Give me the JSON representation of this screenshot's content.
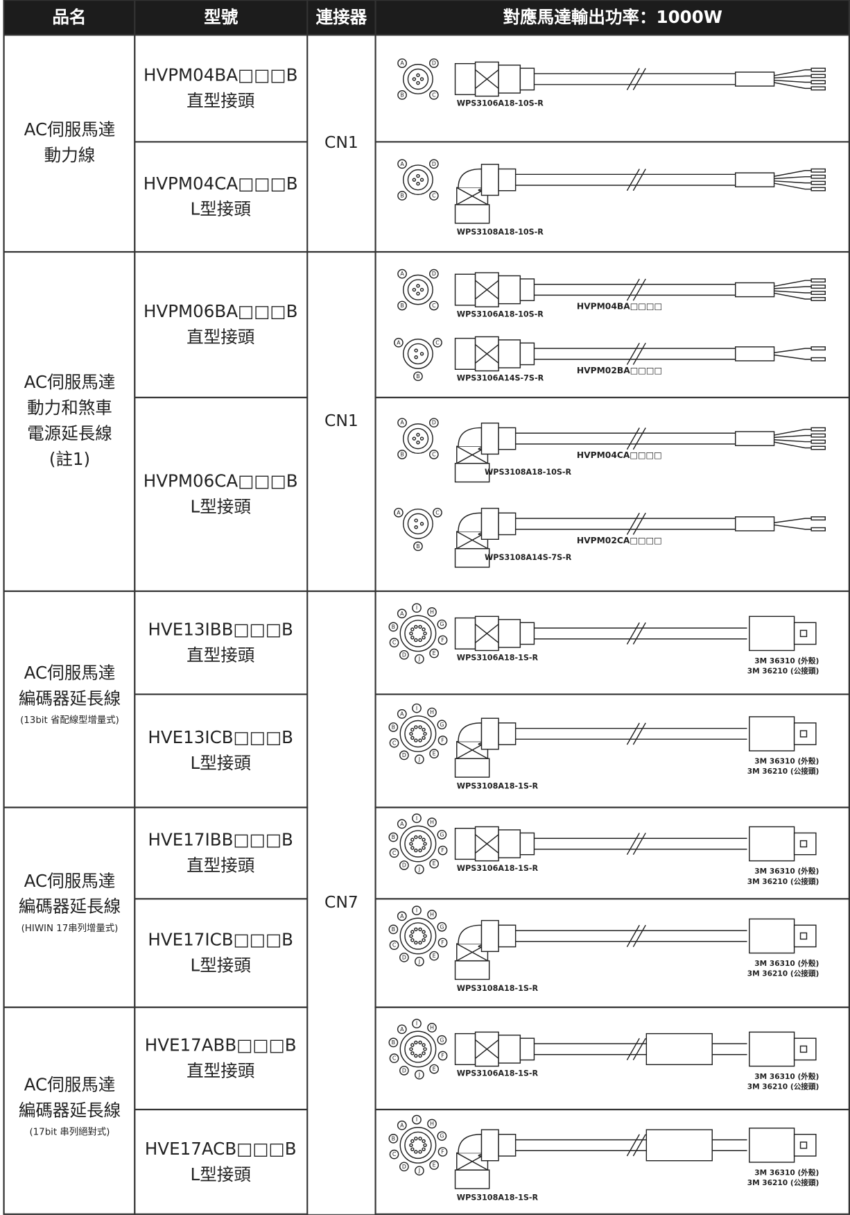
{
  "header": [
    "品名",
    "型號",
    "連接器",
    "對應馬達輸出功率：1000W"
  ],
  "connectors": [
    "CN1",
    "CN1",
    "CN7"
  ],
  "groups": [
    {
      "name": [
        "AC伺服馬達",
        "動力線"
      ],
      "rows": [
        {
          "model": "HVPM04BA□□□B",
          "type": "直型接頭",
          "cables": [
            {
              "part": "WPS3106A18-10S-R",
              "pins": [
                "A",
                "D",
                "C",
                "B"
              ]
            }
          ]
        },
        {
          "model": "HVPM04CA□□□B",
          "type": "L型接頭",
          "cables": [
            {
              "part": "WPS3108A18-10S-R",
              "pins": [
                "A",
                "D",
                "C",
                "B"
              ]
            }
          ]
        }
      ]
    },
    {
      "name": [
        "AC伺服馬達",
        "動力和煞車",
        "電源延長線",
        "(註1)"
      ],
      "rows": [
        {
          "model": "HVPM06BA□□□B",
          "type": "直型接頭",
          "cables": [
            {
              "part": "WPS3106A18-10S-R",
              "pins": [
                "A",
                "D",
                "C",
                "B"
              ],
              "label": "HVPM04BA□□□□"
            },
            {
              "part": "WPS3106A14S-7S-R",
              "pins": [
                "A",
                "C",
                "B"
              ],
              "label": "HVPM02BA□□□□"
            }
          ]
        },
        {
          "model": "HVPM06CA□□□B",
          "type": "L型接頭",
          "cables": [
            {
              "part": "WPS3108A18-10S-R",
              "pins": [
                "A",
                "D",
                "C",
                "B"
              ],
              "label": "HVPM04CA□□□□"
            },
            {
              "part": "WPS3108A14S-7S-R",
              "pins": [
                "A",
                "C",
                "B"
              ],
              "label": "HVPM02CA□□□□"
            }
          ]
        }
      ]
    },
    {
      "name": [
        "AC伺服馬達",
        "編碼器延長線"
      ],
      "note": "(13bit 省配線型增量式)",
      "rows": [
        {
          "model": "HVE13IBB□□□B",
          "type": "直型接頭",
          "cables": [
            {
              "part": "WPS3106A18-1S-R",
              "pins": [
                "B",
                "A",
                "I",
                "H",
                "G",
                "F",
                "E",
                "J",
                "D",
                "C"
              ],
              "end_labels": [
                "3M 36310 (外殼)",
                "3M 36210 (公接頭)"
              ]
            }
          ]
        },
        {
          "model": "HVE13ICB□□□B",
          "type": "L型接頭",
          "cables": [
            {
              "part": "WPS3108A18-1S-R",
              "pins": [
                "B",
                "A",
                "I",
                "H",
                "G",
                "F",
                "E",
                "J",
                "D",
                "C"
              ],
              "end_labels": [
                "3M 36310 (外殼)",
                "3M 36210 (公接頭)"
              ]
            }
          ]
        }
      ]
    },
    {
      "name": [
        "AC伺服馬達",
        "編碼器延長線"
      ],
      "note": "(HIWIN 17串列增量式)",
      "rows": [
        {
          "model": "HVE17IBB□□□B",
          "type": "直型接頭",
          "cables": [
            {
              "part": "WPS3106A18-1S-R",
              "pins": [
                "B",
                "A",
                "I",
                "H",
                "G",
                "F",
                "E",
                "J",
                "D",
                "C"
              ],
              "end_labels": [
                "3M 36310 (外殼)",
                "3M 36210 (公接頭)"
              ]
            }
          ]
        },
        {
          "model": "HVE17ICB□□□B",
          "type": "L型接頭",
          "cables": [
            {
              "part": "WPS3108A18-1S-R",
              "pins": [
                "B",
                "A",
                "I",
                "H",
                "G",
                "F",
                "E",
                "J",
                "D",
                "C"
              ],
              "end_labels": [
                "3M 36310 (外殼)",
                "3M 36210 (公接頭)"
              ]
            }
          ]
        }
      ]
    },
    {
      "name": [
        "AC伺服馬達",
        "編碼器延長線"
      ],
      "note": "(17bit 串列絕對式)",
      "rows": [
        {
          "model": "HVE17ABB□□□B",
          "type": "直型接頭",
          "cables": [
            {
              "part": "WPS3106A18-1S-R",
              "pins": [
                "B",
                "A",
                "I",
                "H",
                "G",
                "F",
                "E",
                "J",
                "D",
                "C"
              ],
              "end_labels": [
                "3M 36310 (外殼)",
                "3M 36210 (公接頭)"
              ]
            }
          ]
        },
        {
          "model": "HVE17ACB□□□B",
          "type": "L型接頭",
          "cables": [
            {
              "part": "WPS3108A18-1S-R",
              "pins": [
                "B",
                "A",
                "I",
                "H",
                "G",
                "F",
                "E",
                "J",
                "D",
                "C"
              ],
              "end_labels": [
                "3M 36310 (外殼)",
                "3M 36210 (公接頭)"
              ]
            }
          ]
        }
      ]
    }
  ]
}
